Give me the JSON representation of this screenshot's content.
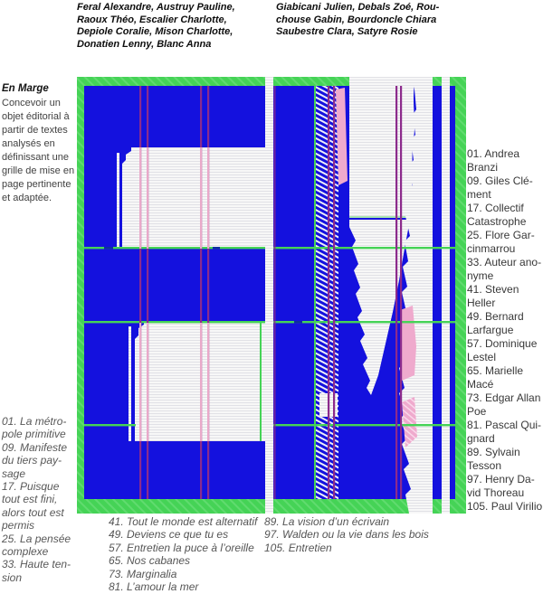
{
  "header": {
    "team_left": "Feral Alexandre, Austruy Pauline,\nRaoux Théo, Escalier Charlotte,\nDepiole Coralie, Mison Charlotte,\nDonatien Lenny, Blanc Anna",
    "team_right": "Giabicani Julien, Debals Zoé, Rou-\nchouse Gabin, Bourdoncle Chiara\nSaubestre Clara, Satyre Rosie"
  },
  "project": {
    "title": "En Marge",
    "description": "Concevoir un\nobjet éditorial à\npartir de textes\nanalysés en\ndéfinissant une\ngrille de mise en\npage pertinente\net adaptée."
  },
  "works_left": {
    "items": [
      "01. La métro-\npole primitive",
      "09. Manifeste\ndu tiers pay-\nsage",
      "17. Puisque\ntout est fini,\nalors tout est\npermis",
      "25. La pensée\ncomplexe",
      "33. Haute ten-\nsion"
    ]
  },
  "authors_right": {
    "items": [
      "01. Andrea\nBranzi",
      "09. Giles Clé-\nment",
      "17. Collectif\nCatastrophe",
      "25. Flore Gar-\ncinmarrou",
      "33. Auteur ano-\nnyme",
      "41. Steven\nHeller",
      "49. Bernard\nLarfargue",
      "57. Dominique\nLestel",
      "65. Marielle\nMacé",
      "73. Edgar Allan\nPoe",
      "81. Pascal Qui-\ngnard",
      "89. Sylvain\nTesson",
      "97. Henry Da-\nvid Thoreau",
      "105. Paul Virilio"
    ]
  },
  "works_bottom_left": {
    "items": [
      "41. Tout le monde est alternatif",
      "49. Deviens ce que tu es",
      "57. Entretien la puce à l’oreille",
      "65. Nos cabanes",
      "73. Marginalia",
      "81. L’amour la mer"
    ]
  },
  "works_bottom_right": {
    "items": [
      "89. La vision d’un écrivain",
      "97. Walden ou la vie dans les bois",
      "105. Entretien"
    ]
  },
  "artwork": {
    "alt": "glitched-book-spread-artwork",
    "palette": {
      "green": "#45D356",
      "green_light": "#7BE487",
      "blue": "#1411DE",
      "magenta": "#8C2B8C",
      "pink": "#EFAACD",
      "pink_line": "#E9A9C9",
      "paper": "#F7F7F7",
      "ruling": "#E1E1E6"
    }
  }
}
